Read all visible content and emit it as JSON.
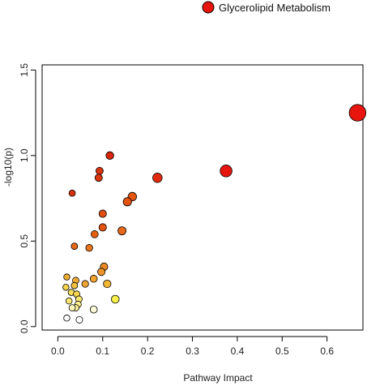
{
  "chart_data": {
    "type": "scatter",
    "title": "",
    "xlabel": "Pathway Impact",
    "ylabel": "-log10(p)",
    "xlim": [
      -0.035,
      0.68
    ],
    "ylim": [
      -0.02,
      1.53
    ],
    "x_ticks": [
      "0.0",
      "0.1",
      "0.2",
      "0.3",
      "0.4",
      "0.5",
      "0.6"
    ],
    "x_tick_values": [
      0,
      0.1,
      0.2,
      0.3,
      0.4,
      0.5,
      0.6
    ],
    "y_ticks": [
      "0.0",
      "0.5",
      "1.0",
      "1.5"
    ],
    "y_tick_values": [
      0,
      0.5,
      1.0,
      1.5
    ],
    "grid": false,
    "legend": {
      "placement": "top-right",
      "label": "Glycerolipid Metabolism",
      "color": "#e8150f"
    },
    "points": [
      {
        "x": 0.668,
        "y": 1.25,
        "color": "#e8150f"
      },
      {
        "x": 0.375,
        "y": 0.91,
        "color": "#e8150f"
      },
      {
        "x": 0.222,
        "y": 0.87,
        "color": "#e02a0d"
      },
      {
        "x": 0.116,
        "y": 1.0,
        "color": "#d8260c"
      },
      {
        "x": 0.093,
        "y": 0.91,
        "color": "#d8320c"
      },
      {
        "x": 0.091,
        "y": 0.87,
        "color": "#dc360d"
      },
      {
        "x": 0.032,
        "y": 0.78,
        "color": "#da2f0c"
      },
      {
        "x": 0.166,
        "y": 0.76,
        "color": "#e5560f"
      },
      {
        "x": 0.155,
        "y": 0.73,
        "color": "#e4530f"
      },
      {
        "x": 0.1,
        "y": 0.66,
        "color": "#e14d0e"
      },
      {
        "x": 0.1,
        "y": 0.58,
        "color": "#e4530f"
      },
      {
        "x": 0.082,
        "y": 0.54,
        "color": "#e5600f"
      },
      {
        "x": 0.143,
        "y": 0.56,
        "color": "#e8681a"
      },
      {
        "x": 0.07,
        "y": 0.46,
        "color": "#e8741c"
      },
      {
        "x": 0.037,
        "y": 0.47,
        "color": "#e46a15"
      },
      {
        "x": 0.103,
        "y": 0.35,
        "color": "#eb8a25"
      },
      {
        "x": 0.097,
        "y": 0.32,
        "color": "#ed952a"
      },
      {
        "x": 0.08,
        "y": 0.28,
        "color": "#f0a42f"
      },
      {
        "x": 0.11,
        "y": 0.25,
        "color": "#f2b835"
      },
      {
        "x": 0.061,
        "y": 0.25,
        "color": "#efa533"
      },
      {
        "x": 0.04,
        "y": 0.27,
        "color": "#f0ab34"
      },
      {
        "x": 0.037,
        "y": 0.24,
        "color": "#f3c23b"
      },
      {
        "x": 0.02,
        "y": 0.29,
        "color": "#f0ad32"
      },
      {
        "x": 0.018,
        "y": 0.23,
        "color": "#f6d54a"
      },
      {
        "x": 0.03,
        "y": 0.2,
        "color": "#f8de5a"
      },
      {
        "x": 0.042,
        "y": 0.19,
        "color": "#f6d44c"
      },
      {
        "x": 0.047,
        "y": 0.16,
        "color": "#f9e872"
      },
      {
        "x": 0.025,
        "y": 0.15,
        "color": "#fae975"
      },
      {
        "x": 0.045,
        "y": 0.13,
        "color": "#fbee88"
      },
      {
        "x": 0.04,
        "y": 0.11,
        "color": "#fcf29c"
      },
      {
        "x": 0.032,
        "y": 0.11,
        "color": "#fdf7b8"
      },
      {
        "x": 0.128,
        "y": 0.16,
        "color": "#f8f04a"
      },
      {
        "x": 0.08,
        "y": 0.1,
        "color": "#fefbd8"
      },
      {
        "x": 0.02,
        "y": 0.05,
        "color": "#ffffff"
      },
      {
        "x": 0.048,
        "y": 0.04,
        "color": "#ffffff"
      }
    ]
  }
}
